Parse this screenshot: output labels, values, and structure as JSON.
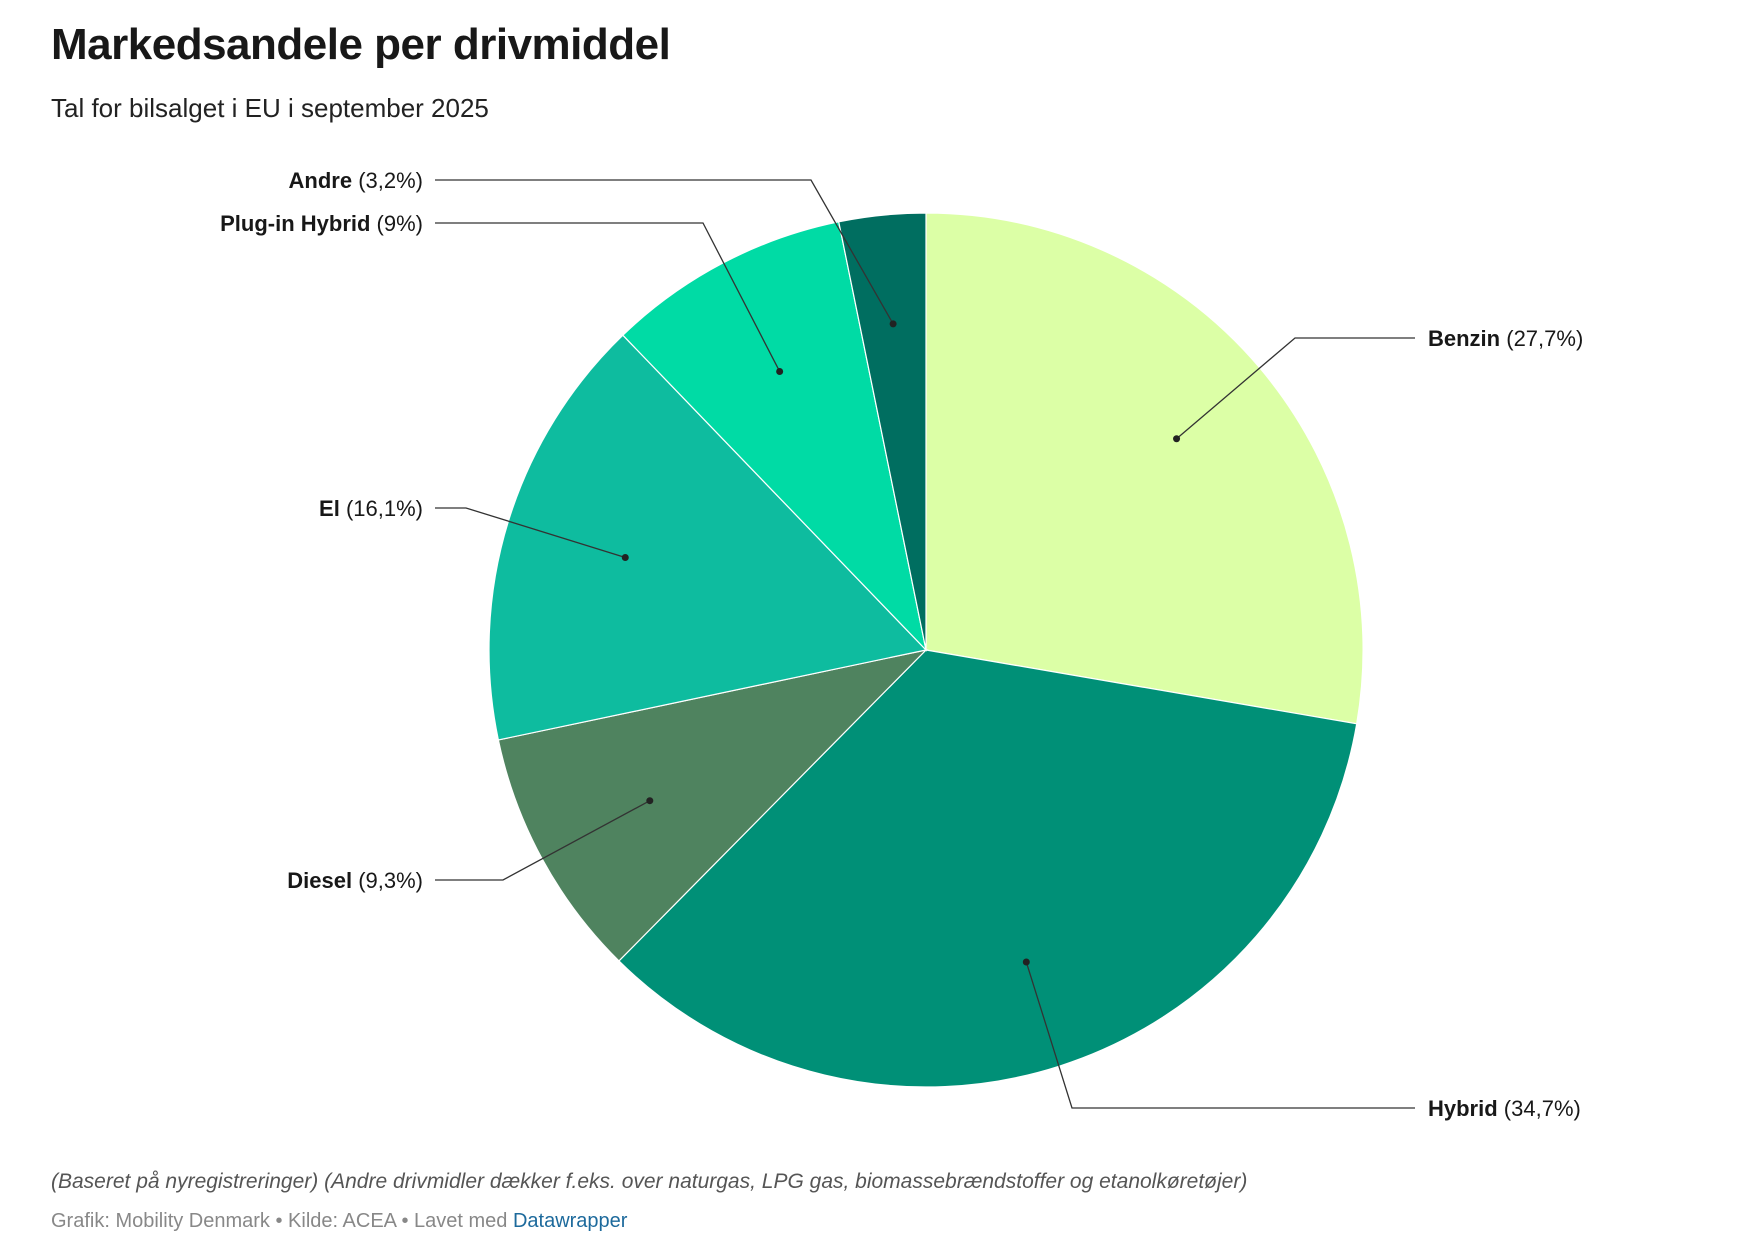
{
  "chart_data": {
    "type": "pie",
    "title": "Markedsandele per drivmiddel",
    "subtitle": "Tal for bilsalget i EU i september 2025",
    "slices": [
      {
        "name": "Benzin",
        "value": 27.7,
        "label": "(27,7%)",
        "color": "#dcffa6"
      },
      {
        "name": "Hybrid",
        "value": 34.7,
        "label": "(34,7%)",
        "color": "#009077"
      },
      {
        "name": "Diesel",
        "value": 9.3,
        "label": "(9,3%)",
        "color": "#4f835f"
      },
      {
        "name": "El",
        "value": 16.1,
        "label": "(16,1%)",
        "color": "#0ebc9f"
      },
      {
        "name": "Plug-in Hybrid",
        "value": 9,
        "label": "(9%)",
        "color": "#00dba5"
      },
      {
        "name": "Andre",
        "value": 3.2,
        "label": "(3,2%)",
        "color": "#006e60"
      }
    ]
  },
  "footer": {
    "notes": "(Baseret på nyregistreringer) (Andre drivmidler dækker f.eks. over naturgas, LPG gas, biomassebrændstoffer og etanolkøretøjer)",
    "credits": "Grafik: Mobility Denmark • Kilde: ACEA • Lavet med ",
    "link": "Datawrapper"
  }
}
